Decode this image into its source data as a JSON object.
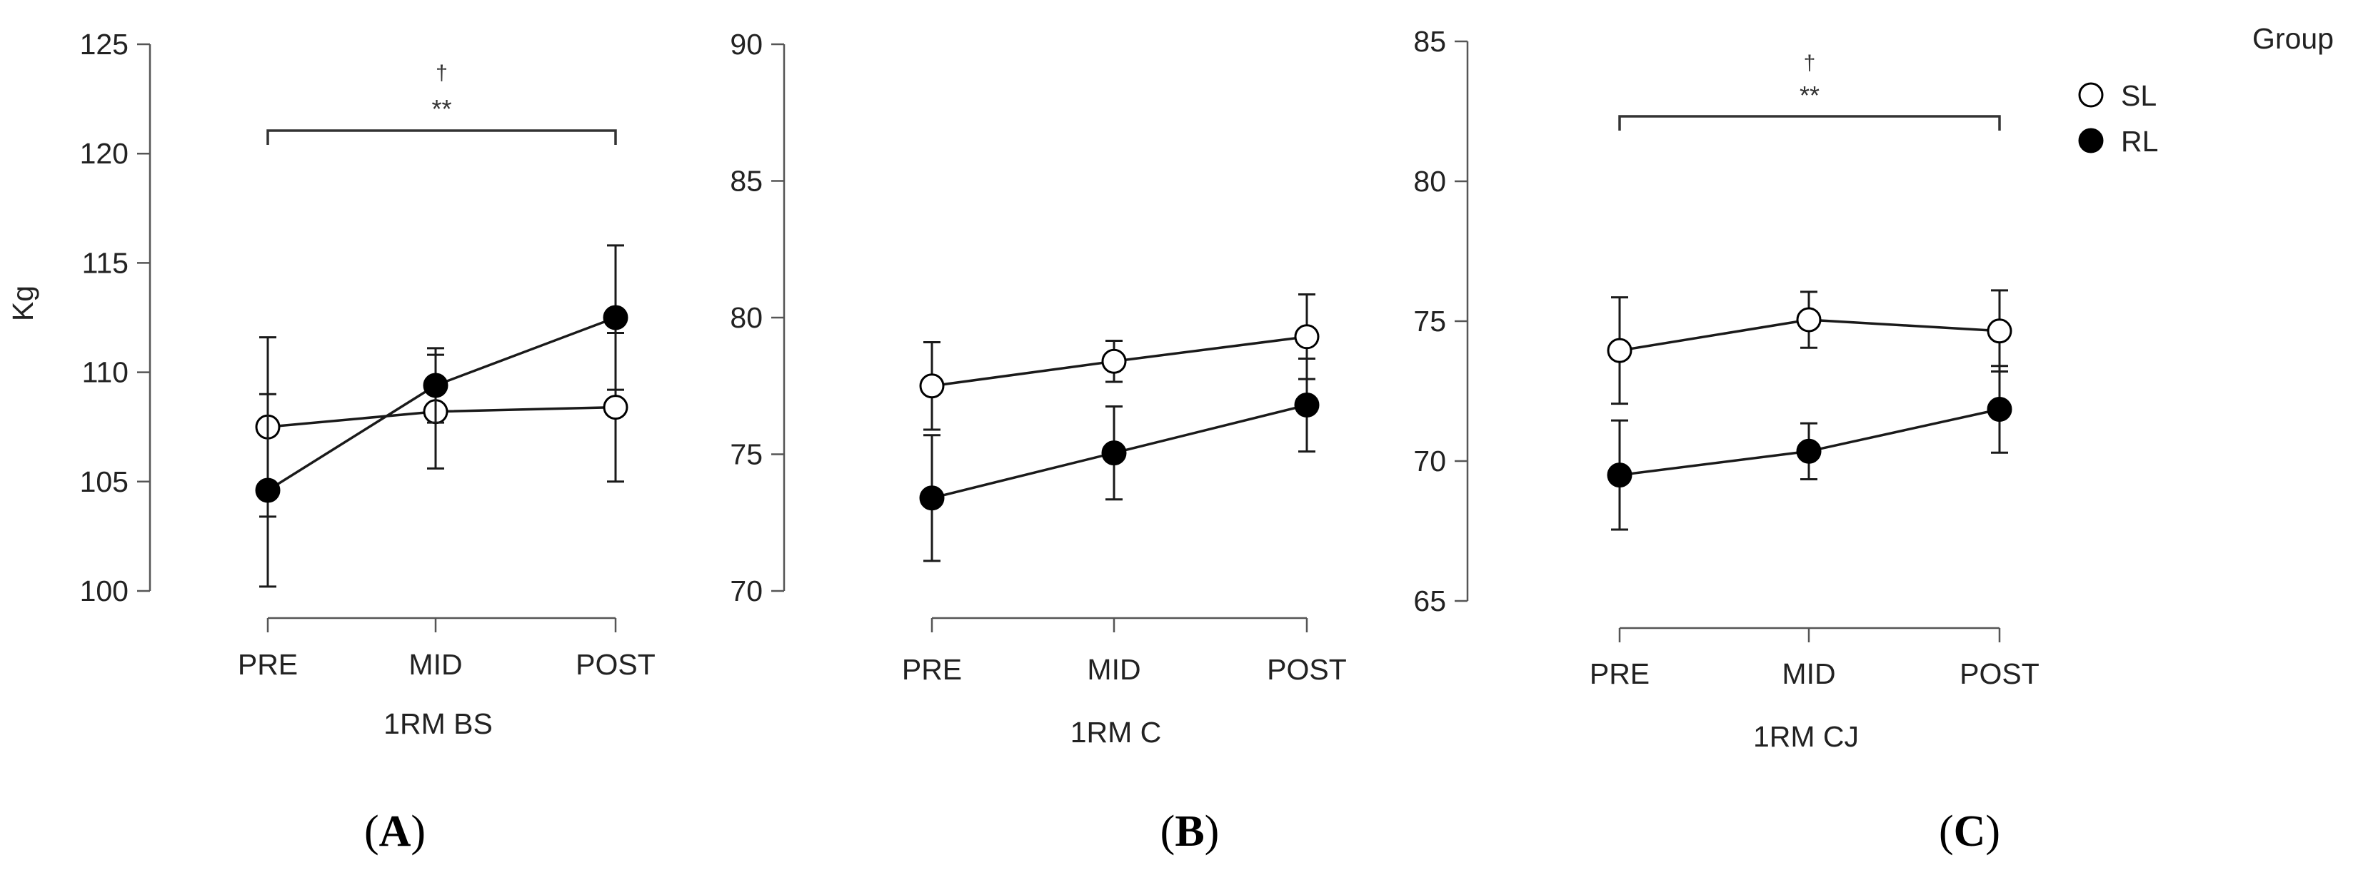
{
  "chart_data": [
    {
      "panel": "A",
      "type": "line",
      "title": "",
      "xlabel": "1RM BS",
      "ylabel": "Kg",
      "categories": [
        "PRE",
        "MID",
        "POST"
      ],
      "ylim": [
        100,
        125
      ],
      "yticks": [
        100,
        105,
        110,
        115,
        120,
        125
      ],
      "series": [
        {
          "name": "SL",
          "marker": "open-circle",
          "values": [
            107.5,
            108.2,
            108.4
          ],
          "errors": [
            4.1,
            2.6,
            3.4
          ]
        },
        {
          "name": "RL",
          "marker": "filled-circle",
          "values": [
            104.6,
            109.4,
            112.5
          ],
          "errors": [
            4.4,
            1.7,
            3.3
          ]
        }
      ],
      "significance": {
        "from": "PRE",
        "to": "POST",
        "symbols": [
          "†",
          "**"
        ]
      }
    },
    {
      "panel": "B",
      "type": "line",
      "title": "",
      "xlabel": "1RM C",
      "ylabel": "",
      "categories": [
        "PRE",
        "MID",
        "POST"
      ],
      "ylim": [
        70,
        90
      ],
      "yticks": [
        70,
        75,
        80,
        85,
        90
      ],
      "series": [
        {
          "name": "SL",
          "marker": "open-circle",
          "values": [
            77.5,
            78.4,
            79.3
          ],
          "errors": [
            1.6,
            0.75,
            1.55
          ]
        },
        {
          "name": "RL",
          "marker": "filled-circle",
          "values": [
            73.4,
            75.05,
            76.8
          ],
          "errors": [
            2.3,
            1.7,
            1.7
          ]
        }
      ],
      "significance": null
    },
    {
      "panel": "C",
      "type": "line",
      "title": "",
      "xlabel": "1RM CJ",
      "ylabel": "",
      "categories": [
        "PRE",
        "MID",
        "POST"
      ],
      "ylim": [
        65,
        85
      ],
      "yticks": [
        65,
        70,
        75,
        80,
        85
      ],
      "series": [
        {
          "name": "SL",
          "marker": "open-circle",
          "values": [
            73.95,
            75.05,
            74.65
          ],
          "errors": [
            1.9,
            1.0,
            1.45
          ]
        },
        {
          "name": "RL",
          "marker": "filled-circle",
          "values": [
            69.5,
            70.35,
            71.85
          ],
          "errors": [
            1.95,
            1.0,
            1.55
          ]
        }
      ],
      "significance": {
        "from": "PRE",
        "to": "POST",
        "symbols": [
          "†",
          "**"
        ]
      }
    }
  ],
  "legend": {
    "title": "Group",
    "placement": "top-right",
    "items": [
      {
        "name": "SL",
        "marker": "open-circle"
      },
      {
        "name": "RL",
        "marker": "filled-circle"
      }
    ]
  },
  "panel_labels": [
    "A",
    "B",
    "C"
  ],
  "colors": {
    "line": "#1a1a1a",
    "open_fill": "#ffffff",
    "filled": "#000000",
    "axis": "#555555",
    "bracket": "#333333"
  }
}
